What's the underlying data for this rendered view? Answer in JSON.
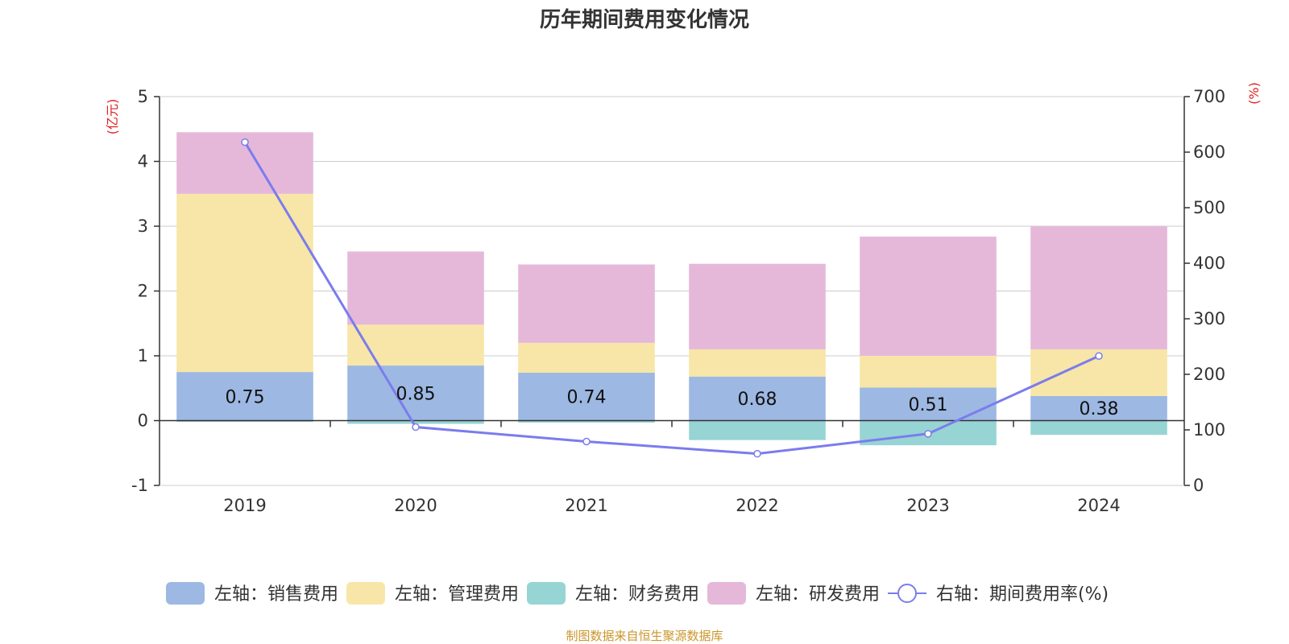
{
  "title": "历年期间费用变化情况",
  "source": "制图数据来自恒生聚源数据库",
  "colors": {
    "sales": "#9db8e2",
    "admin": "#f7e6a7",
    "finance": "#97d4d4",
    "rnd": "#e5b8d9",
    "rate": "#7b7ced",
    "grid": "#cccccc",
    "axis": "#333333",
    "unit": "#e02020"
  },
  "chart_data": {
    "type": "bar",
    "stacked": true,
    "categories": [
      "2019",
      "2020",
      "2021",
      "2022",
      "2023",
      "2024"
    ],
    "left_axis": {
      "unit": "(亿元)",
      "ylim": [
        -1,
        5
      ],
      "ticks": [
        "-1",
        "0",
        "1",
        "2",
        "3",
        "4",
        "5"
      ]
    },
    "right_axis": {
      "unit": "(%)",
      "ylim": [
        0,
        700
      ],
      "ticks": [
        "0",
        "100",
        "200",
        "300",
        "400",
        "500",
        "600",
        "700"
      ]
    },
    "series": [
      {
        "name": "左轴：销售费用",
        "key": "sales",
        "axis": "left",
        "type": "bar",
        "values": [
          0.75,
          0.85,
          0.74,
          0.68,
          0.51,
          0.38
        ],
        "labels": [
          "0.75",
          "0.85",
          "0.74",
          "0.68",
          "0.51",
          "0.38"
        ]
      },
      {
        "name": "左轴：管理费用",
        "key": "admin",
        "axis": "left",
        "type": "bar",
        "values": [
          2.75,
          0.63,
          0.46,
          0.42,
          0.49,
          0.72
        ]
      },
      {
        "name": "左轴：财务费用",
        "key": "finance",
        "axis": "left",
        "type": "bar",
        "values": [
          -0.02,
          -0.05,
          -0.03,
          -0.3,
          -0.38,
          -0.22
        ]
      },
      {
        "name": "左轴：研发费用",
        "key": "rnd",
        "axis": "left",
        "type": "bar",
        "values": [
          0.95,
          1.13,
          1.21,
          1.32,
          1.84,
          1.9
        ]
      },
      {
        "name": "右轴：期间费用率(%)",
        "key": "rate",
        "axis": "right",
        "type": "line",
        "values": [
          618,
          105,
          79,
          57,
          93,
          233
        ]
      }
    ],
    "grid": true,
    "legend": "bottom"
  }
}
